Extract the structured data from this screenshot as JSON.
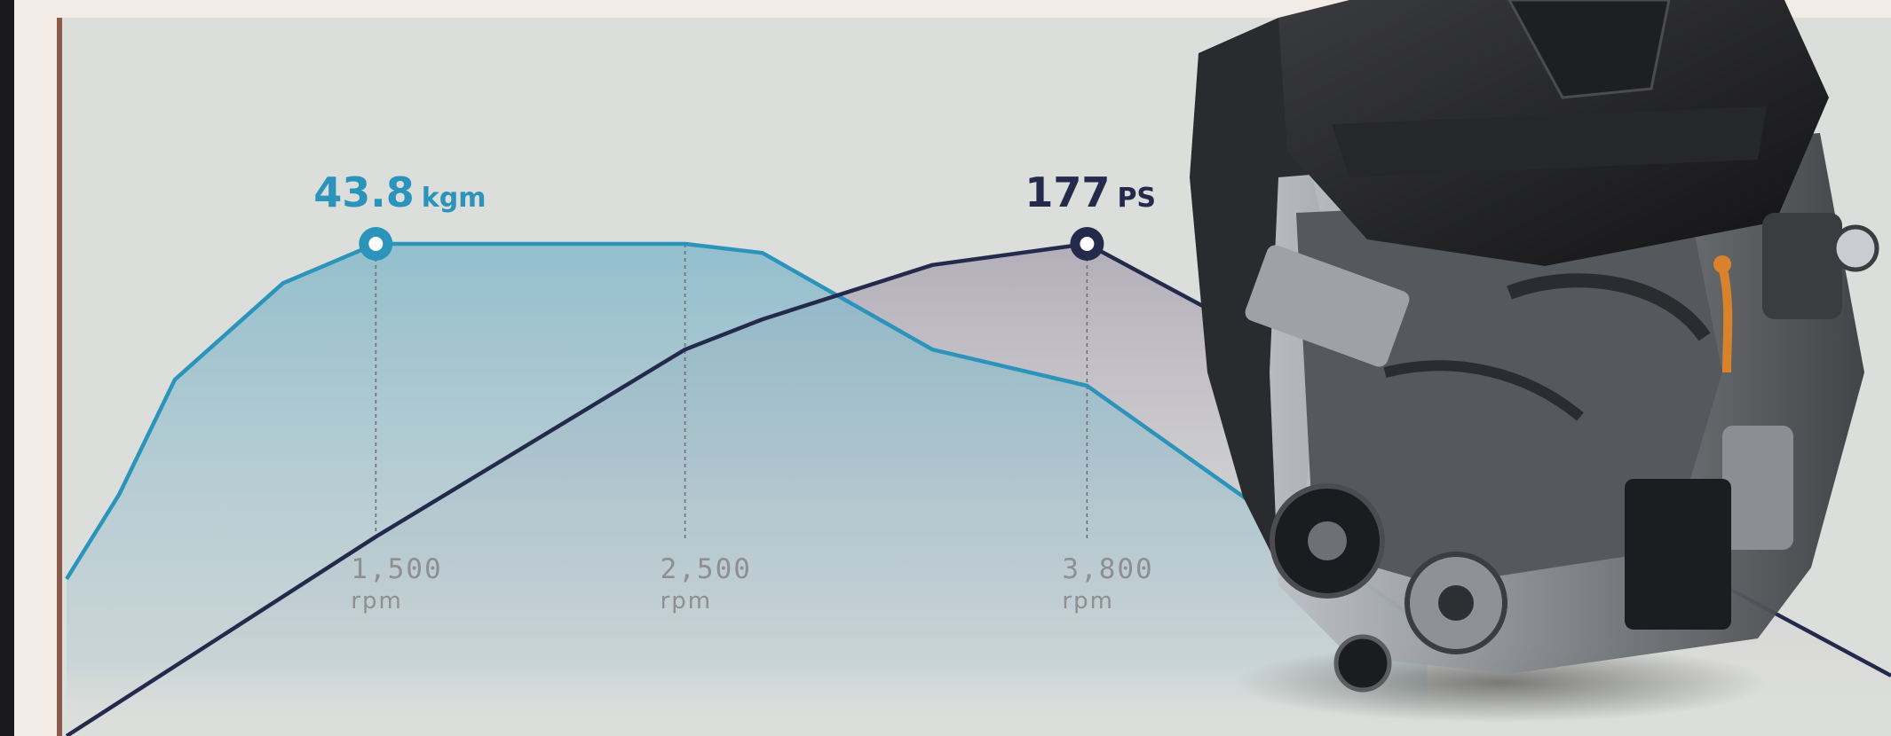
{
  "chart_data": {
    "type": "line",
    "x_axis": {
      "unit": "rpm"
    },
    "ticks": [
      {
        "value": "1,500",
        "unit": "rpm",
        "rpm": 1500
      },
      {
        "value": "2,500",
        "unit": "rpm",
        "rpm": 2500
      },
      {
        "value": "3,800",
        "unit": "rpm",
        "rpm": 3800
      }
    ],
    "series": [
      {
        "key": "torque",
        "color": "#2c94bb",
        "fill": "#8fc0d0",
        "peak": {
          "value": "43.8",
          "unit": "kgm",
          "rpm": 1500
        },
        "x": [
          500,
          670,
          850,
          1200,
          1500,
          2500,
          2750,
          3300,
          3800,
          4900
        ],
        "y": [
          0.26,
          0.4,
          0.59,
          0.75,
          0.815,
          0.815,
          0.8,
          0.64,
          0.58,
          0.18
        ]
      },
      {
        "key": "power",
        "color": "#242a4c",
        "fill": "#bdb6c2",
        "peak": {
          "value": "177",
          "unit": "PS",
          "rpm": 3800
        },
        "x": [
          500,
          1500,
          2500,
          2750,
          3300,
          3800,
          6400
        ],
        "y": [
          0.0,
          0.33,
          0.64,
          0.69,
          0.78,
          0.815,
          0.1
        ]
      }
    ],
    "image": {
      "subject": "engine-photo"
    }
  }
}
